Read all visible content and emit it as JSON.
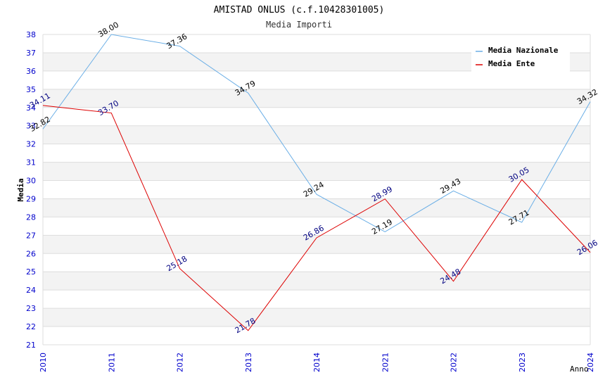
{
  "chart_data": {
    "type": "line",
    "title": "AMISTAD ONLUS (c.f.10428301005)",
    "subtitle": "Media Importi",
    "xlabel": "Anno",
    "ylabel": "Media",
    "categories": [
      "2010",
      "2011",
      "2012",
      "2013",
      "2014",
      "2021",
      "2022",
      "2023",
      "2024"
    ],
    "ylim": [
      21,
      38
    ],
    "yticks": [
      "21",
      "22",
      "23",
      "24",
      "25",
      "26",
      "27",
      "28",
      "29",
      "30",
      "31",
      "32",
      "33",
      "34",
      "35",
      "36",
      "37",
      "38"
    ],
    "grid": true,
    "legend": "top-right",
    "series": [
      {
        "name": "Media Nazionale",
        "color": "#6aaee6",
        "label_color": "#000000",
        "values": [
          32.82,
          38.0,
          37.36,
          34.79,
          29.24,
          27.19,
          29.43,
          27.71,
          34.32
        ],
        "labels": [
          "32.82",
          "38.00",
          "37.36",
          "34.79",
          "29.24",
          "27.19",
          "29.43",
          "27.71",
          "34.32"
        ]
      },
      {
        "name": "Media Ente",
        "color": "#dd0000",
        "label_color": "#000080",
        "values": [
          34.11,
          33.7,
          25.18,
          21.78,
          26.86,
          28.99,
          24.48,
          30.05,
          26.06
        ],
        "labels": [
          "34.11",
          "33.70",
          "25.18",
          "21.78",
          "26.86",
          "28.99",
          "24.48",
          "30.05",
          "26.06"
        ]
      }
    ]
  }
}
